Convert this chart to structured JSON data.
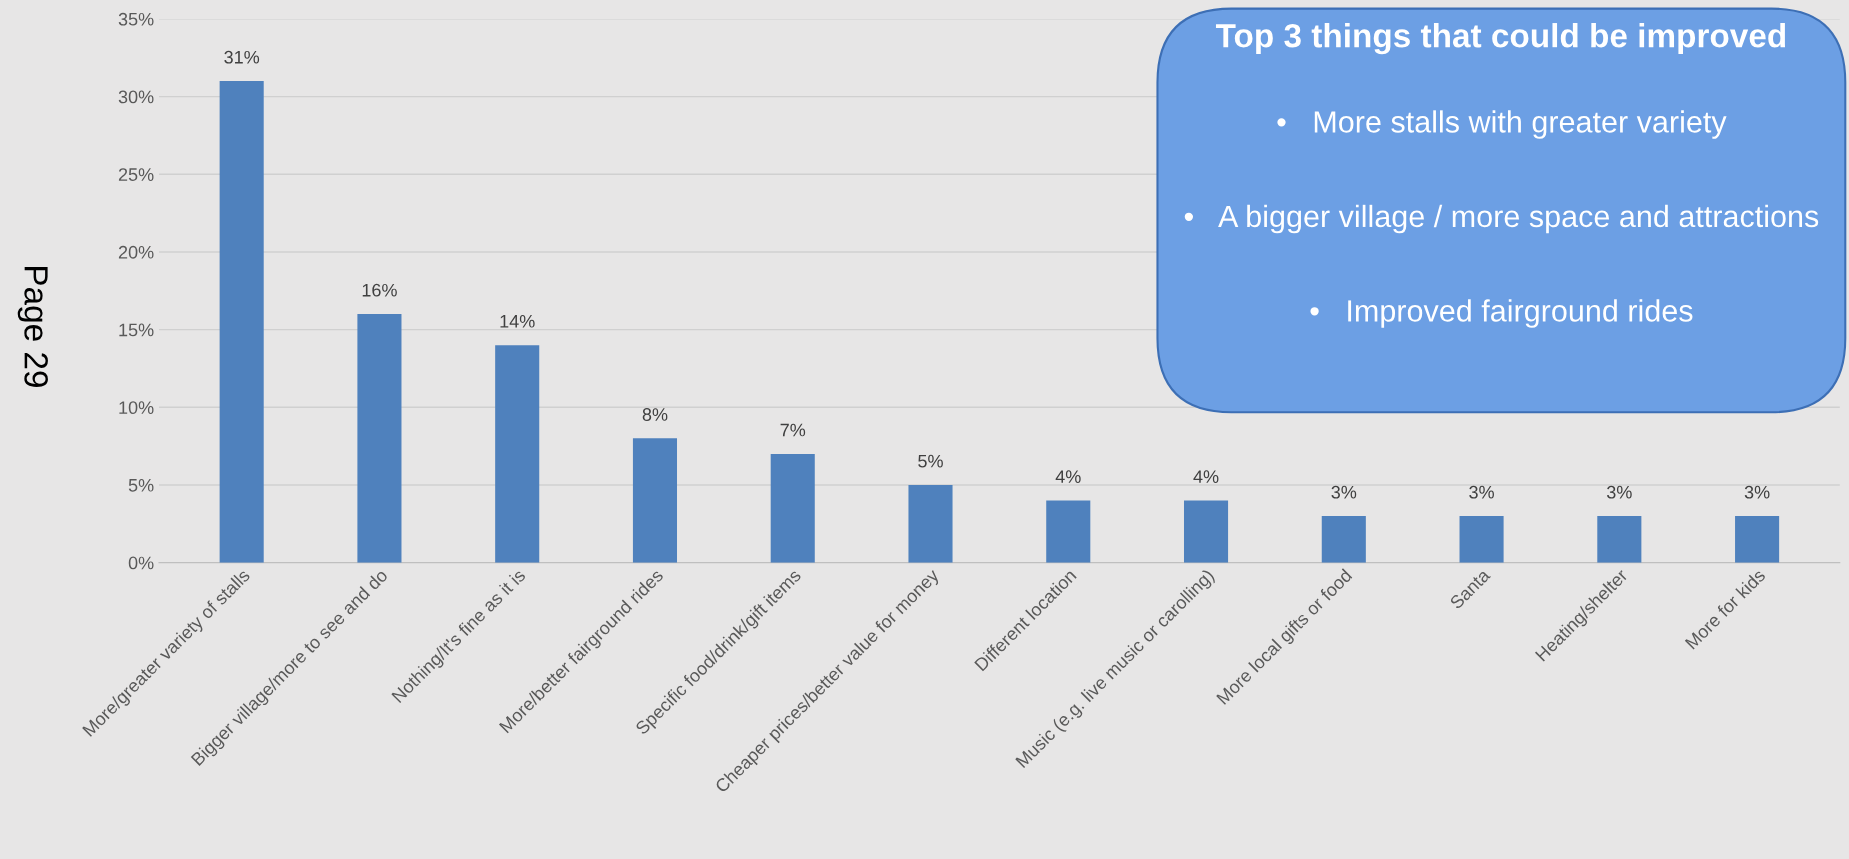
{
  "chart_data": {
    "type": "bar",
    "categories": [
      "More/greater variety of stalls",
      "Bigger village/more to see and do",
      "Nothing/It's fine as it is",
      "More/better fairground rides",
      "Specific food/drink/gift items",
      "Cheaper prices/better value for money",
      "Different location",
      "Music (e.g. live music or carolling)",
      "More local gifts or food",
      "Santa",
      "Heating/shelter",
      "More for kids"
    ],
    "values": [
      31,
      16,
      14,
      8,
      7,
      5,
      4,
      4,
      3,
      3,
      3,
      3
    ],
    "value_labels": [
      "31%",
      "16%",
      "14%",
      "8%",
      "7%",
      "5%",
      "4%",
      "4%",
      "3%",
      "3%",
      "3%",
      "3%"
    ],
    "color": "#4f81bd",
    "ylim": [
      0,
      35
    ],
    "yticks": [
      {
        "value": 0,
        "label": "0%"
      },
      {
        "value": 5,
        "label": "5%"
      },
      {
        "value": 10,
        "label": "10%"
      },
      {
        "value": 15,
        "label": "15%"
      },
      {
        "value": 20,
        "label": "20%"
      },
      {
        "value": 25,
        "label": "25%"
      },
      {
        "value": 30,
        "label": "30%"
      },
      {
        "value": 35,
        "label": "35%"
      }
    ],
    "grid": "y",
    "annotations": [
      "Page 29",
      "Top 3 things that could be improved",
      "•   More stalls with greater variety",
      "•   A bigger village / more space and attractions",
      "•   Improved fairground rides"
    ]
  }
}
